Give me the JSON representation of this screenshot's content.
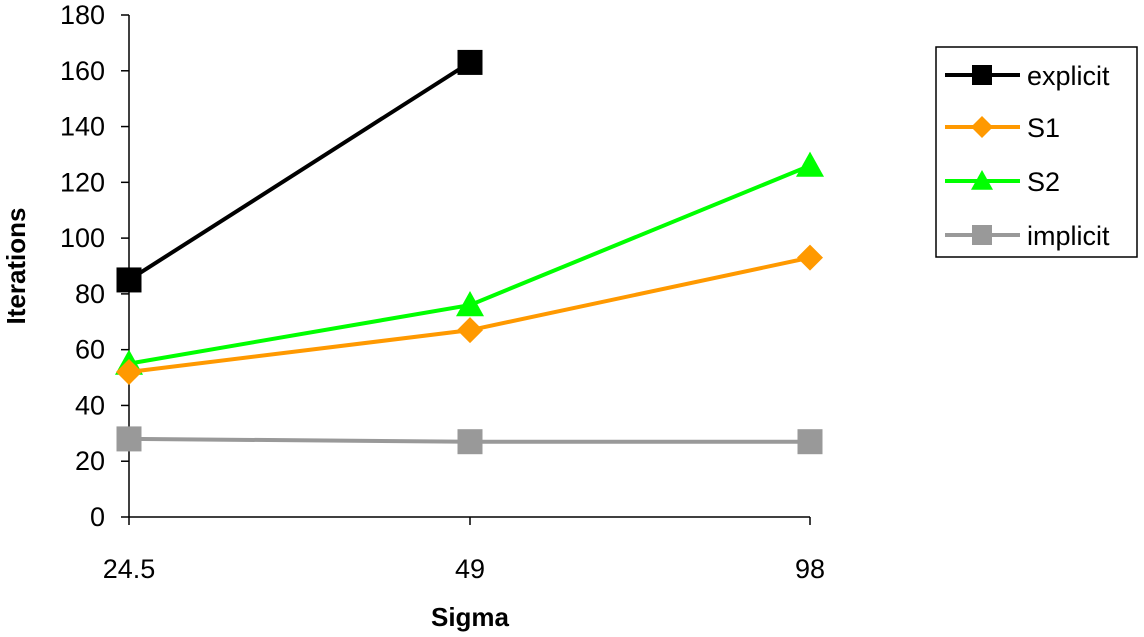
{
  "chart_data": {
    "type": "line",
    "categories": [
      "24.5",
      "49",
      "98"
    ],
    "ylabel": "Iterations",
    "xlabel": "Sigma",
    "ylim": [
      0,
      180
    ],
    "yticks": [
      0,
      20,
      40,
      60,
      80,
      100,
      120,
      140,
      160,
      180
    ],
    "grid": false,
    "legend_position": "right",
    "series": [
      {
        "name": "explicit",
        "values": [
          85,
          163,
          null
        ],
        "color": "#000000",
        "marker": "square"
      },
      {
        "name": "S1",
        "values": [
          52,
          67,
          93
        ],
        "color": "#FF9900",
        "marker": "diamond"
      },
      {
        "name": "S2",
        "values": [
          55,
          76,
          126
        ],
        "color": "#00FF00",
        "marker": "triangle"
      },
      {
        "name": "implicit",
        "values": [
          28,
          27,
          27
        ],
        "color": "#999999",
        "marker": "square"
      }
    ]
  }
}
